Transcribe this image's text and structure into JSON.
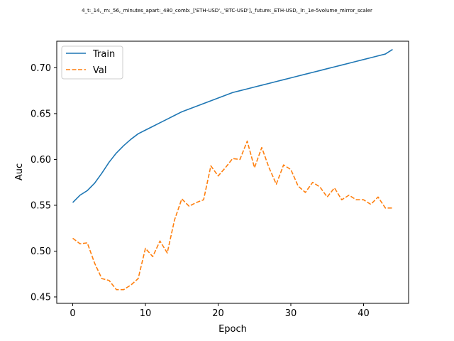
{
  "chart_data": {
    "type": "line",
    "title": "4_t:_14,_m:_56,_minutes_apart:_480_comb:_['ETH-USD',_'BTC-USD'],_future:_ETH-USD,_lr:_1e-5volume_mirror_scaler",
    "xlabel": "Epoch",
    "ylabel": "Auc",
    "xlim": [
      -2.2,
      46.2
    ],
    "ylim": [
      0.443,
      0.729
    ],
    "xticks": [
      0,
      10,
      20,
      30,
      40
    ],
    "xtick_labels": [
      "0",
      "10",
      "20",
      "30",
      "40"
    ],
    "yticks": [
      0.45,
      0.5,
      0.55,
      0.6,
      0.65,
      0.7
    ],
    "ytick_labels": [
      "0.45",
      "0.50",
      "0.55",
      "0.60",
      "0.65",
      "0.70"
    ],
    "grid": false,
    "legend_position": "upper-left",
    "x": [
      0,
      1,
      2,
      3,
      4,
      5,
      6,
      7,
      8,
      9,
      10,
      11,
      12,
      13,
      14,
      15,
      16,
      17,
      18,
      19,
      20,
      21,
      22,
      23,
      24,
      25,
      26,
      27,
      28,
      29,
      30,
      31,
      32,
      33,
      34,
      35,
      36,
      37,
      38,
      39,
      40,
      41,
      42,
      43,
      44
    ],
    "series": [
      {
        "name": "Train",
        "color": "#1f77b4",
        "linestyle": "solid",
        "values": [
          0.553,
          0.561,
          0.566,
          0.574,
          0.585,
          0.597,
          0.607,
          0.615,
          0.622,
          0.628,
          0.632,
          0.636,
          0.64,
          0.644,
          0.648,
          0.652,
          0.655,
          0.658,
          0.661,
          0.664,
          0.667,
          0.67,
          0.673,
          0.675,
          0.677,
          0.679,
          0.681,
          0.683,
          0.685,
          0.687,
          0.689,
          0.691,
          0.693,
          0.695,
          0.697,
          0.699,
          0.701,
          0.703,
          0.705,
          0.707,
          0.709,
          0.711,
          0.713,
          0.715,
          0.72
        ]
      },
      {
        "name": "Val",
        "color": "#ff7f0e",
        "linestyle": "dashed",
        "values": [
          0.514,
          0.508,
          0.509,
          0.487,
          0.47,
          0.468,
          0.458,
          0.458,
          0.463,
          0.47,
          0.503,
          0.494,
          0.511,
          0.498,
          0.534,
          0.557,
          0.549,
          0.553,
          0.556,
          0.593,
          0.582,
          0.591,
          0.601,
          0.6,
          0.62,
          0.591,
          0.613,
          0.591,
          0.573,
          0.594,
          0.589,
          0.571,
          0.564,
          0.575,
          0.57,
          0.559,
          0.569,
          0.556,
          0.561,
          0.556,
          0.556,
          0.551,
          0.559,
          0.547,
          0.547
        ]
      }
    ]
  }
}
